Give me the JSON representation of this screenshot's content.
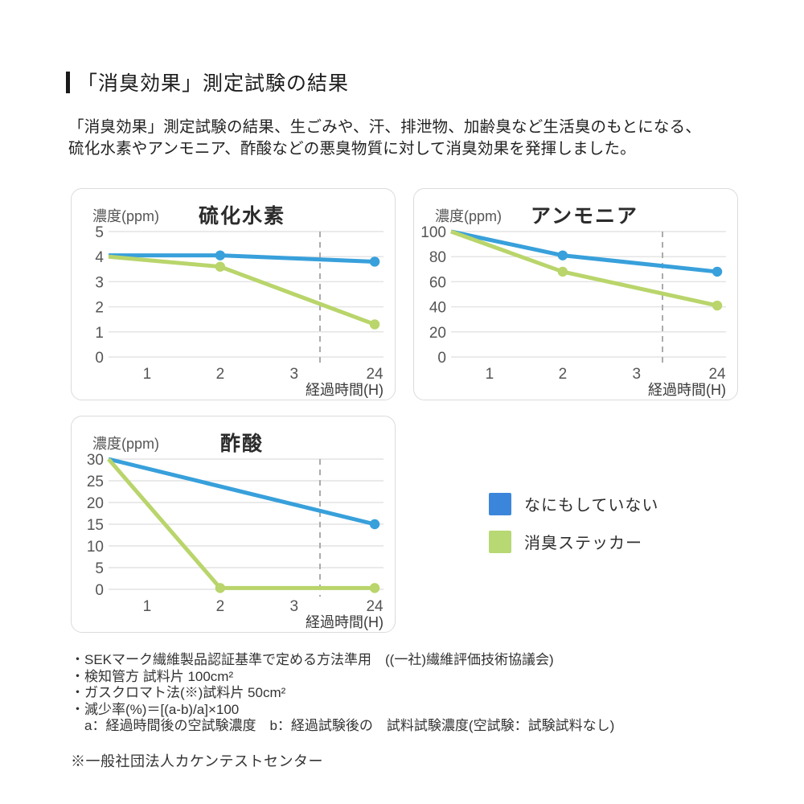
{
  "page": {
    "title": "「消臭効果」測定試験の結果",
    "intro_line1": "「消臭効果」測定試験の結果、生ごみや、汗、排泄物、加齢臭など生活臭のもとになる、",
    "intro_line2": "硫化水素やアンモニア、酢酸などの悪臭物質に対して消臭効果を発揮しました。"
  },
  "colors": {
    "blue": "#38a0db",
    "green": "#b9d56b",
    "legend_blue": "#3b86db",
    "legend_green": "#b7d873",
    "grid": "#e4e4e4",
    "dashed": "#ababab",
    "panel_border": "#dbdbdb"
  },
  "legend": {
    "items": [
      {
        "label": "なにもしていない",
        "color_key": "legend_blue"
      },
      {
        "label": "消臭ステッカー",
        "color_key": "legend_green"
      }
    ]
  },
  "chart_data": [
    {
      "type": "line",
      "title": "硫化水素",
      "unit_label": "濃度(ppm)",
      "xlabel": "経過時間(H)",
      "x_ticks": [
        "1",
        "2",
        "3",
        "24"
      ],
      "y_ticks": [
        5,
        4,
        3,
        2,
        1,
        0
      ],
      "ylim": [
        0,
        5
      ],
      "axis_break_between": [
        "3",
        "24"
      ],
      "grid": true,
      "series": [
        {
          "name": "なにもしていない",
          "color": "blue",
          "x": [
            0,
            2,
            24
          ],
          "values": [
            4.05,
            4.05,
            3.8
          ],
          "dots": [
            false,
            true,
            true
          ]
        },
        {
          "name": "消臭ステッカー",
          "color": "green",
          "x": [
            0,
            2,
            24
          ],
          "values": [
            4.0,
            3.6,
            1.3
          ],
          "dots": [
            false,
            true,
            true
          ]
        }
      ]
    },
    {
      "type": "line",
      "title": "アンモニア",
      "unit_label": "濃度(ppm)",
      "xlabel": "経過時間(H)",
      "x_ticks": [
        "1",
        "2",
        "3",
        "24"
      ],
      "y_ticks": [
        100,
        80,
        60,
        40,
        20,
        0
      ],
      "ylim": [
        0,
        100
      ],
      "axis_break_between": [
        "3",
        "24"
      ],
      "grid": true,
      "series": [
        {
          "name": "なにもしていない",
          "color": "blue",
          "x": [
            0,
            2,
            24
          ],
          "values": [
            100,
            81,
            68
          ],
          "dots": [
            false,
            true,
            true
          ]
        },
        {
          "name": "消臭ステッカー",
          "color": "green",
          "x": [
            0,
            2,
            24
          ],
          "values": [
            100,
            68,
            41
          ],
          "dots": [
            false,
            true,
            true
          ]
        }
      ]
    },
    {
      "type": "line",
      "title": "酢酸",
      "unit_label": "濃度(ppm)",
      "xlabel": "経過時間(H)",
      "x_ticks": [
        "1",
        "2",
        "3",
        "24"
      ],
      "y_ticks": [
        30,
        25,
        20,
        15,
        10,
        5,
        0
      ],
      "ylim": [
        0,
        30
      ],
      "axis_break_between": [
        "3",
        "24"
      ],
      "grid": true,
      "series": [
        {
          "name": "なにもしていない",
          "color": "blue",
          "x": [
            0,
            24
          ],
          "values": [
            30,
            15
          ],
          "dots": [
            false,
            true
          ]
        },
        {
          "name": "消臭ステッカー",
          "color": "green",
          "x": [
            0,
            2,
            24
          ],
          "values": [
            30,
            0.3,
            0.3
          ],
          "dots": [
            false,
            true,
            true
          ]
        }
      ]
    }
  ],
  "footnotes": {
    "items": [
      "・SEKマーク繊維製品認証基準で定める方法準用　((一社)繊維評価技術協議会)",
      "・検知管方 試料片 100cm²",
      "・ガスクロマト法(※)試料片 50cm²",
      "・減少率(%)＝[(a-b)/a]×100",
      "　a：経過時間後の空試験濃度　b：経過試験後の　試料試験濃度(空試験：試験試料なし)"
    ],
    "source": "※一般社団法人カケンテストセンター"
  }
}
